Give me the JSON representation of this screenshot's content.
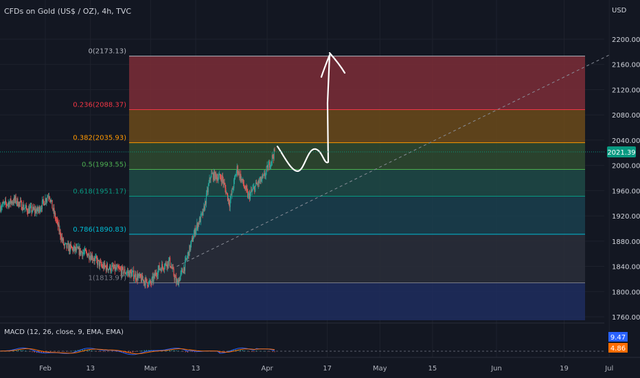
{
  "header": {
    "symbol_title": "CFDs on Gold (US$ / OZ), 4h, TVC",
    "currency": "USD"
  },
  "colors": {
    "background": "#131722",
    "candle_up": "#26a69a",
    "candle_down": "#ef5350",
    "price_badge": "#089981",
    "macd_badge": "#2962ff",
    "signal_badge": "#ff6d00"
  },
  "price_axis": {
    "ticks": [
      "2200.00",
      "2160.00",
      "2120.00",
      "2080.00",
      "2040.00",
      "2000.00",
      "1960.00",
      "1920.00",
      "1880.00",
      "1840.00",
      "1800.00",
      "1760.00"
    ]
  },
  "current_price": "2021.39",
  "time_axis": {
    "ticks": [
      "Feb",
      "13",
      "Mar",
      "13",
      "Apr",
      "17",
      "May",
      "15",
      "Jun",
      "19",
      "Jul"
    ]
  },
  "fib_levels": [
    {
      "label": "0(2173.13)",
      "ratio": 0,
      "price": 2173.13,
      "color": "#b2b5be",
      "fill": "#7c2d37"
    },
    {
      "label": "0.236(2088.37)",
      "ratio": 0.236,
      "price": 2088.37,
      "color": "#f23645",
      "fill": "#6b4a1a"
    },
    {
      "label": "0.382(2035.93)",
      "ratio": 0.382,
      "price": 2035.93,
      "color": "#ff9800",
      "fill": "#2f4a2f"
    },
    {
      "label": "0.5(1993.55)",
      "ratio": 0.5,
      "price": 1993.55,
      "color": "#4caf50",
      "fill": "#1e4a46"
    },
    {
      "label": "0.618(1951.17)",
      "ratio": 0.618,
      "price": 1951.17,
      "color": "#089981",
      "fill": "#1a3f4d"
    },
    {
      "label": "0.786(1890.83)",
      "ratio": 0.786,
      "price": 1890.83,
      "color": "#00bcd4",
      "fill": "#2a2e39"
    },
    {
      "label": "1(1813.97)",
      "ratio": 1,
      "price": 1813.97,
      "color": "#787b86",
      "fill": "#1f2d5e"
    }
  ],
  "macd": {
    "label": "MACD (12, 26, close, 9, EMA, EMA)",
    "macd_value": "9.47",
    "signal_value": "4.86"
  },
  "chart_data": {
    "type": "candlestick",
    "title": "CFDs on Gold (US$ / OZ), 4h, TVC",
    "y_axis": {
      "unit": "USD",
      "range": [
        1745,
        2225
      ],
      "ticks": [
        2200,
        2160,
        2120,
        2080,
        2040,
        2000,
        1960,
        1920,
        1880,
        1840,
        1800,
        1760
      ]
    },
    "x_axis": {
      "ticks": [
        "Feb",
        "13",
        "Mar",
        "13",
        "Apr",
        "17",
        "May",
        "15",
        "Jun",
        "19",
        "Jul"
      ]
    },
    "grid": true,
    "close_path": [
      [
        "Jan 20",
        1935
      ],
      [
        "Jan 24",
        1945
      ],
      [
        "Jan 27",
        1930
      ],
      [
        "Jan 30",
        1928
      ],
      [
        "Feb 2",
        1955
      ],
      [
        "Feb 3",
        1930
      ],
      [
        "Feb 6",
        1872
      ],
      [
        "Feb 9",
        1866
      ],
      [
        "Feb 13",
        1858
      ],
      [
        "Feb 16",
        1840
      ],
      [
        "Feb 20",
        1835
      ],
      [
        "Feb 24",
        1828
      ],
      [
        "Feb 28",
        1815
      ],
      [
        "Mar 1",
        1812
      ],
      [
        "Mar 3",
        1835
      ],
      [
        "Mar 6",
        1848
      ],
      [
        "Mar 8",
        1812
      ],
      [
        "Mar 10",
        1840
      ],
      [
        "Mar 13",
        1900
      ],
      [
        "Mar 15",
        1925
      ],
      [
        "Mar 17",
        1985
      ],
      [
        "Mar 20",
        1980
      ],
      [
        "Mar 22",
        1940
      ],
      [
        "Mar 24",
        1995
      ],
      [
        "Mar 27",
        1950
      ],
      [
        "Mar 29",
        1968
      ],
      [
        "Mar 31",
        1980
      ],
      [
        "Apr 3",
        2021.39
      ]
    ],
    "current_price": 2021.39,
    "fibonacci_retracement": {
      "levels": [
        [
          0,
          2173.13
        ],
        [
          0.236,
          2088.37
        ],
        [
          0.382,
          2035.93
        ],
        [
          0.5,
          1993.55
        ],
        [
          0.618,
          1951.17
        ],
        [
          0.786,
          1890.83
        ],
        [
          1,
          1813.97
        ]
      ]
    },
    "trendline": {
      "from": [
        "Mar 8",
        1840
      ],
      "to": [
        "Jul 1",
        2175
      ],
      "style": "dashed"
    },
    "annotation": {
      "type": "hand-drawn forecast arrow",
      "from": [
        "Apr 3",
        2030
      ],
      "to": [
        "Apr 20",
        2170
      ]
    },
    "macd": {
      "params": "12, 26, close, 9, EMA, EMA",
      "macd": 9.47,
      "signal": 4.86
    }
  }
}
